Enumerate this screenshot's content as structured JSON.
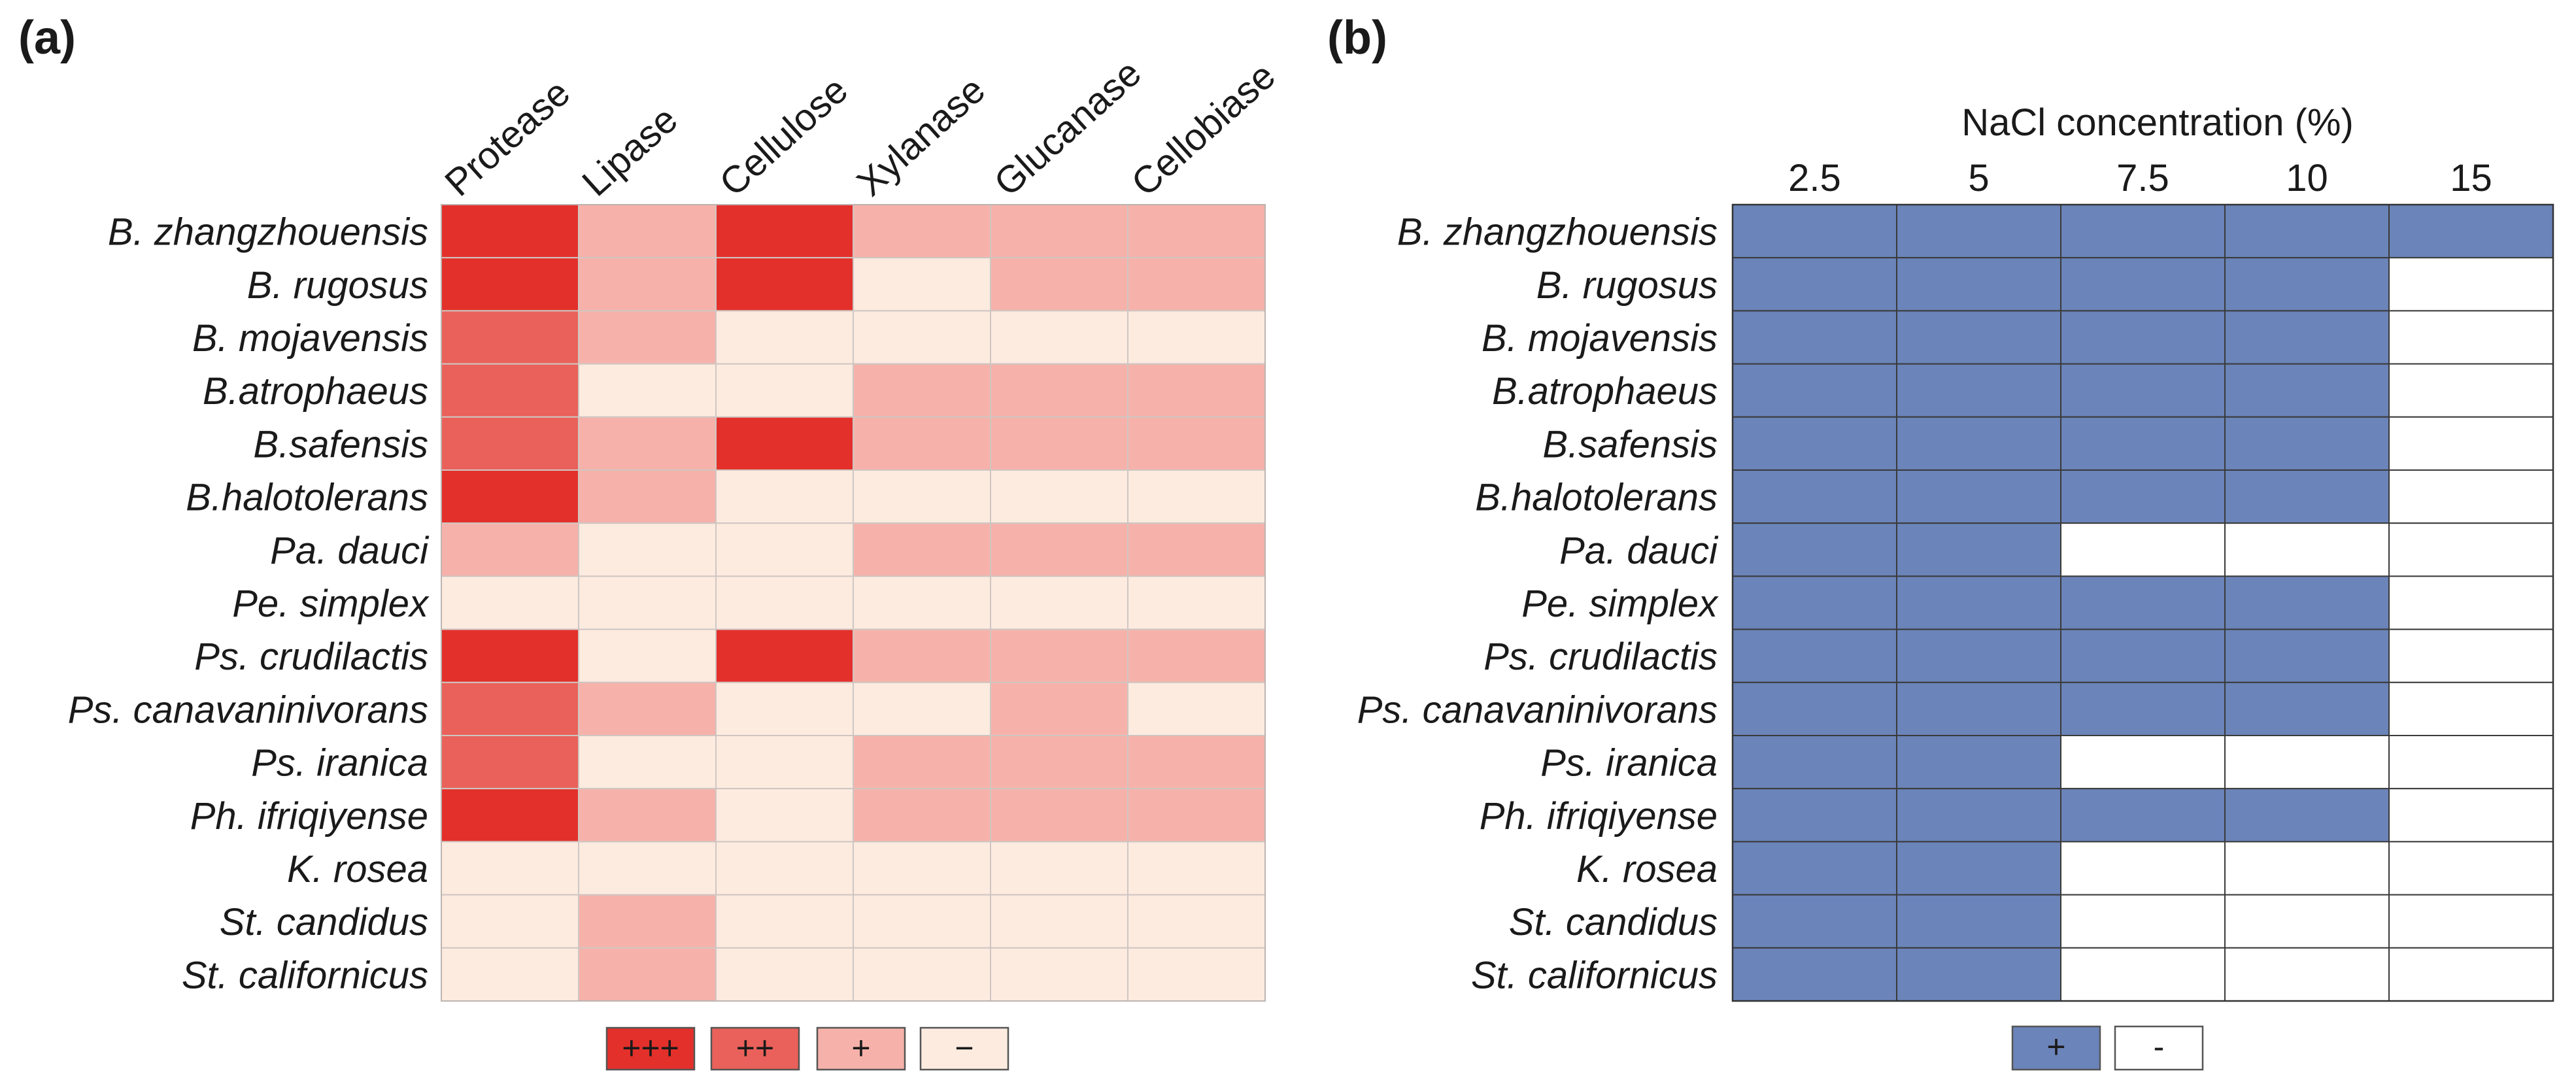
{
  "panels": {
    "a": {
      "label": "(a)"
    },
    "b": {
      "label": "(b)"
    }
  },
  "chart_data": [
    {
      "type": "heatmap",
      "panel": "(a)",
      "title": "",
      "columns": [
        "Protease",
        "Lipase",
        "Cellulose",
        "Xylanase",
        "Glucanase",
        "Cellobiase"
      ],
      "rows": [
        "B. zhangzhouensis",
        "B. rugosus",
        "B. mojavensis",
        "B.atrophaeus",
        "B.safensis",
        "B.halotolerans",
        "Pa. dauci",
        "Pe. simplex",
        "Ps. crudilactis",
        "Ps. canavaninivorans",
        "Ps. iranica",
        "Ph. ifriqiyense",
        "K. rosea",
        "St. candidus",
        "St. californicus"
      ],
      "levels": [
        "−",
        "+",
        "++",
        "+++"
      ],
      "level_colors": [
        "#FDEBE0",
        "#F6B2AA",
        "#E9615A",
        "#E3302B"
      ],
      "values": [
        [
          3,
          1,
          3,
          1,
          1,
          1
        ],
        [
          3,
          1,
          3,
          0,
          1,
          1
        ],
        [
          2,
          1,
          0,
          0,
          0,
          0
        ],
        [
          2,
          0,
          0,
          1,
          1,
          1
        ],
        [
          2,
          1,
          3,
          1,
          1,
          1
        ],
        [
          3,
          1,
          0,
          0,
          0,
          0
        ],
        [
          1,
          0,
          0,
          1,
          1,
          1
        ],
        [
          0,
          0,
          0,
          0,
          0,
          0
        ],
        [
          3,
          0,
          3,
          1,
          1,
          1
        ],
        [
          2,
          1,
          0,
          0,
          1,
          0
        ],
        [
          2,
          0,
          0,
          1,
          1,
          1
        ],
        [
          3,
          1,
          0,
          1,
          1,
          1
        ],
        [
          0,
          0,
          0,
          0,
          0,
          0
        ],
        [
          0,
          1,
          0,
          0,
          0,
          0
        ],
        [
          0,
          1,
          0,
          0,
          0,
          0
        ]
      ],
      "legend": [
        {
          "label": "+++",
          "level": 3
        },
        {
          "label": "++",
          "level": 2
        },
        {
          "label": "+",
          "level": 1
        },
        {
          "label": "−",
          "level": 0
        }
      ]
    },
    {
      "type": "heatmap",
      "panel": "(b)",
      "xlabel": "NaCl concentration (%)",
      "columns": [
        "2.5",
        "5",
        "7.5",
        "10",
        "15"
      ],
      "rows": [
        "B. zhangzhouensis",
        "B. rugosus",
        "B. mojavensis",
        "B.atrophaeus",
        "B.safensis",
        "B.halotolerans",
        "Pa. dauci",
        "Pe. simplex",
        "Ps. crudilactis",
        "Ps. canavaninivorans",
        "Ps. iranica",
        "Ph. ifriqiyense",
        "K. rosea",
        "St. candidus",
        "St. californicus"
      ],
      "levels": [
        "-",
        "+"
      ],
      "level_colors": [
        "#FFFFFF",
        "#6B84B9"
      ],
      "values": [
        [
          1,
          1,
          1,
          1,
          1
        ],
        [
          1,
          1,
          1,
          1,
          0
        ],
        [
          1,
          1,
          1,
          1,
          0
        ],
        [
          1,
          1,
          1,
          1,
          0
        ],
        [
          1,
          1,
          1,
          1,
          0
        ],
        [
          1,
          1,
          1,
          1,
          0
        ],
        [
          1,
          1,
          0,
          0,
          0
        ],
        [
          1,
          1,
          1,
          1,
          0
        ],
        [
          1,
          1,
          1,
          1,
          0
        ],
        [
          1,
          1,
          1,
          1,
          0
        ],
        [
          1,
          1,
          0,
          0,
          0
        ],
        [
          1,
          1,
          1,
          1,
          0
        ],
        [
          1,
          1,
          0,
          0,
          0
        ],
        [
          1,
          1,
          0,
          0,
          0
        ],
        [
          1,
          1,
          0,
          0,
          0
        ]
      ],
      "legend": [
        {
          "label": "+",
          "level": 1
        },
        {
          "label": "-",
          "level": 0
        }
      ]
    }
  ]
}
